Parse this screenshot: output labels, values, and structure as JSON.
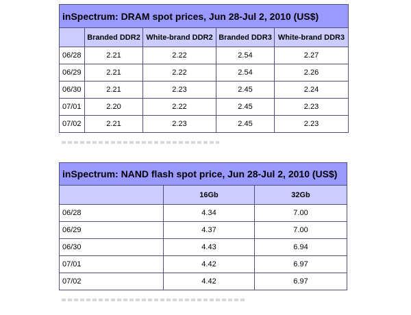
{
  "chart_data": [
    {
      "type": "table",
      "title": "inSpectrum: DRAM spot prices, Jun 28-Jul 2, 2010 (US$)",
      "columns": [
        "",
        "Branded DDR2",
        "White-brand DDR2",
        "Branded DDR3",
        "White-brand DDR3"
      ],
      "rows": [
        [
          "06/28",
          "2.21",
          "2.22",
          "2.54",
          "2.27"
        ],
        [
          "06/29",
          "2.21",
          "2.22",
          "2.54",
          "2.26"
        ],
        [
          "06/30",
          "2.21",
          "2.23",
          "2.45",
          "2.24"
        ],
        [
          "07/01",
          "2.20",
          "2.22",
          "2.45",
          "2.23"
        ],
        [
          "07/02",
          "2.21",
          "2.23",
          "2.45",
          "2.23"
        ]
      ]
    },
    {
      "type": "table",
      "title": "inSpectrum: NAND flash spot price, Jun 28-Jul 2, 2010 (US$)",
      "columns": [
        "",
        "16Gb",
        "32Gb"
      ],
      "rows": [
        [
          "06/28",
          "4.34",
          "7.00"
        ],
        [
          "06/29",
          "4.37",
          "7.00"
        ],
        [
          "06/30",
          "4.43",
          "6.94"
        ],
        [
          "07/01",
          "4.42",
          "6.97"
        ],
        [
          "07/02",
          "4.42",
          "6.97"
        ]
      ]
    }
  ],
  "colors": {
    "title_bg": "#9999ff",
    "header_bg": "#ccccff",
    "border": "#4d4d80"
  }
}
